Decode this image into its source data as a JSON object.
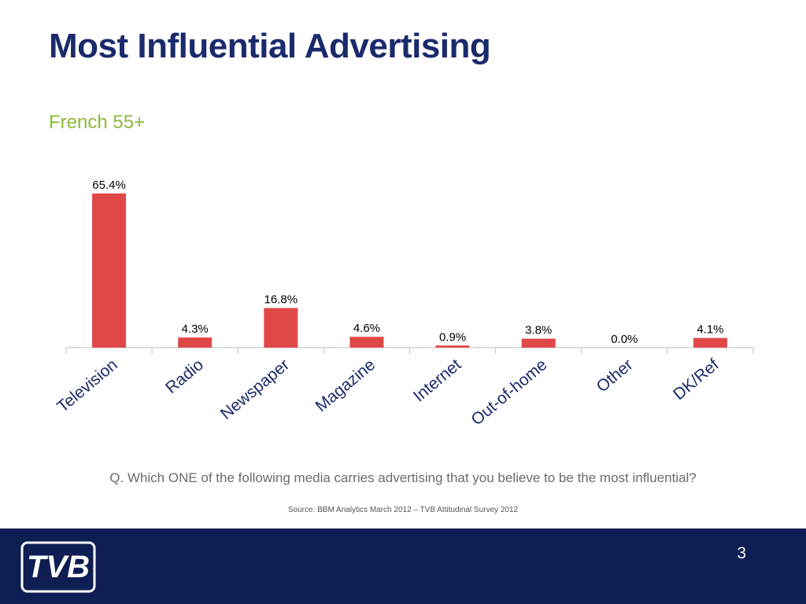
{
  "slide": {
    "title": "Most Influential Advertising",
    "subtitle": "French 55+",
    "question": "Q. Which ONE of the following media carries advertising that you believe to be the most influential?",
    "source": "Source: BBM Analytics March 2012 – TVB Attitudinal Survey 2012",
    "page_number": "3",
    "logo_text": "TVB"
  },
  "colors": {
    "bar": "#e04848",
    "title": "#1a2a6c",
    "subtitle": "#8db83a",
    "footer": "#0e1e52"
  },
  "chart_data": {
    "type": "bar",
    "title": "",
    "xlabel": "",
    "ylabel": "",
    "categories": [
      "Television",
      "Radio",
      "Newspaper",
      "Magazine",
      "Internet",
      "Out-of-home",
      "Other",
      "DK/Ref"
    ],
    "values": [
      65.4,
      4.3,
      16.8,
      4.6,
      0.9,
      3.8,
      0.0,
      4.1
    ],
    "data_labels": [
      "65.4%",
      "4.3%",
      "16.8%",
      "4.6%",
      "0.9%",
      "3.8%",
      "0.0%",
      "4.1%"
    ],
    "ylim": [
      0,
      100
    ],
    "grid": false,
    "legend": "none"
  }
}
